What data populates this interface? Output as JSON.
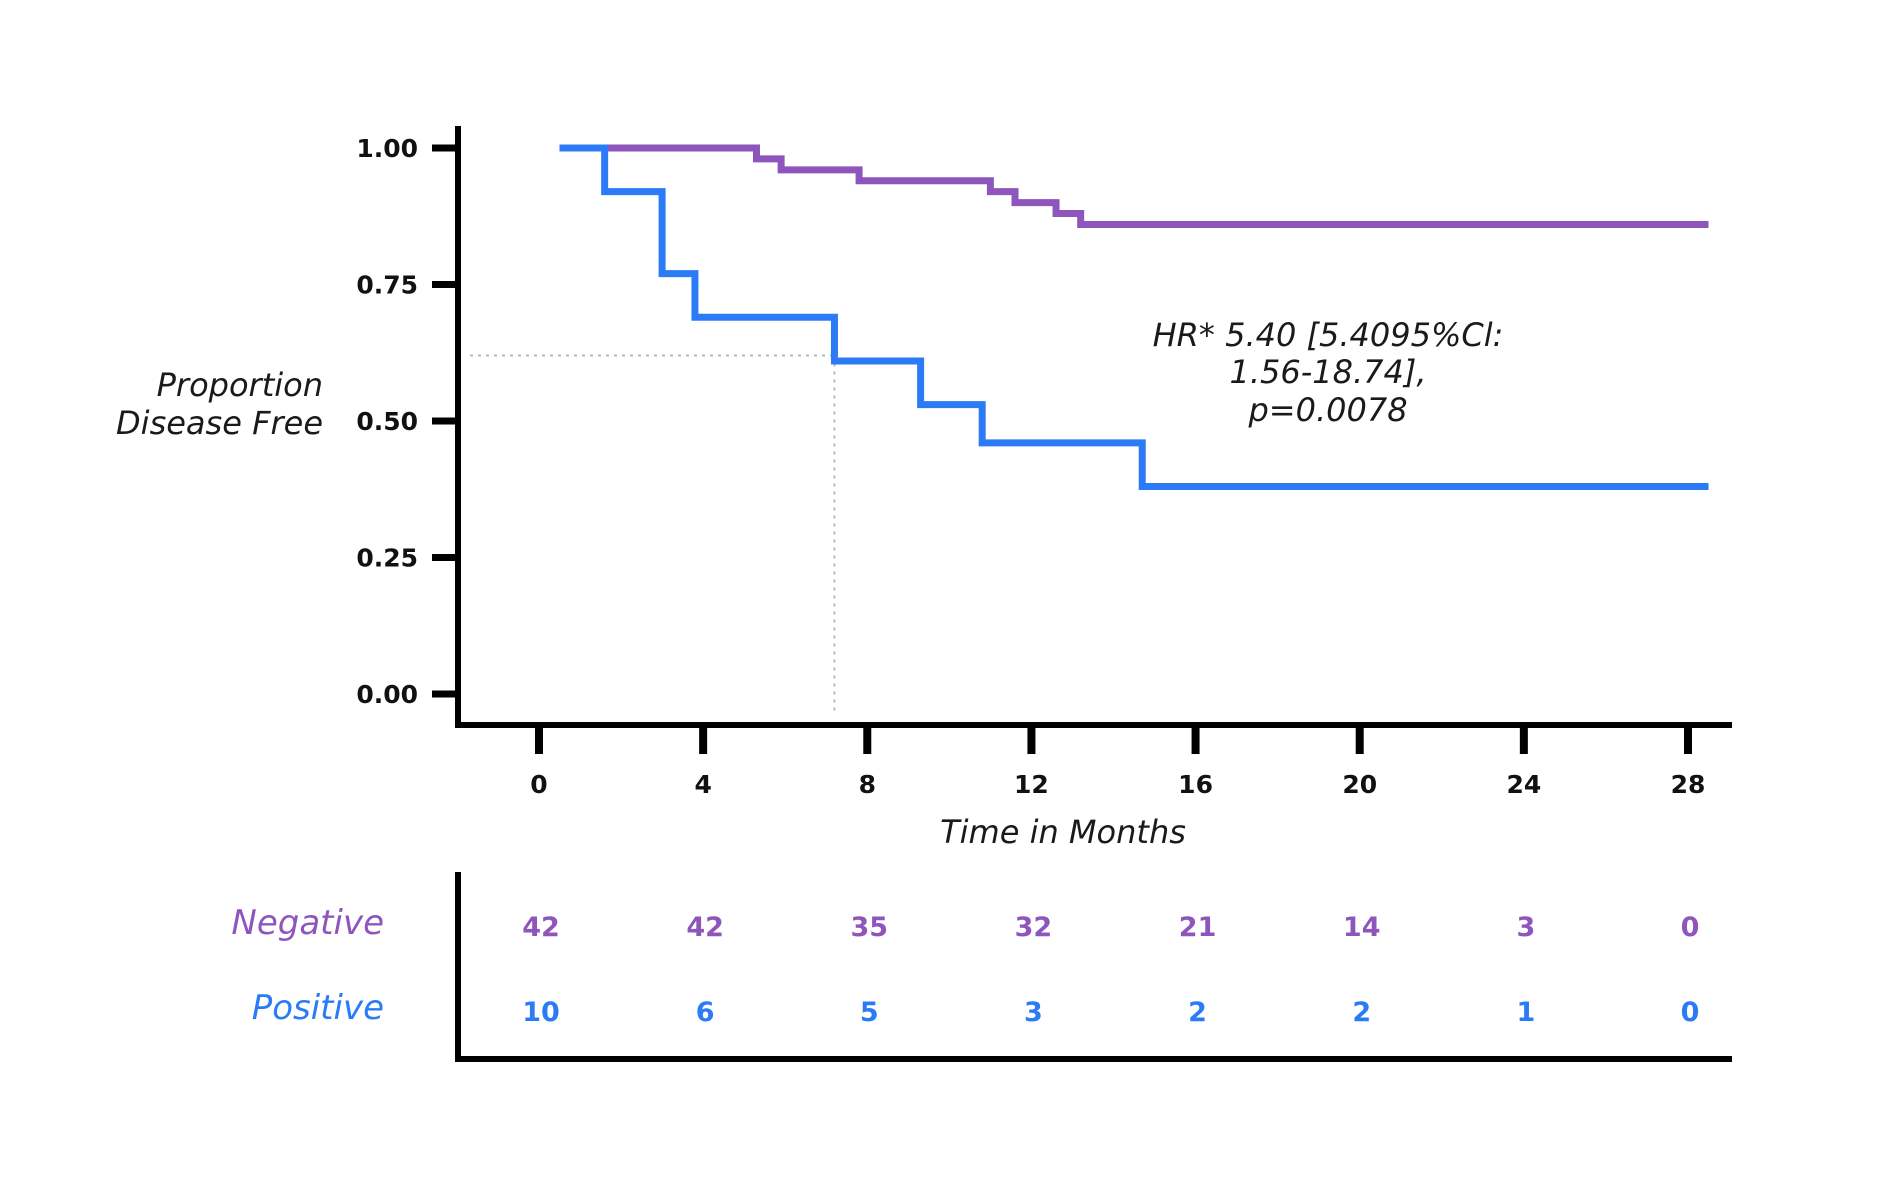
{
  "chart_data": {
    "type": "line",
    "subtype": "kaplan-meier",
    "title": "",
    "xlabel": "Time in Months",
    "ylabel": [
      "Proportion",
      "Disease Free"
    ],
    "xlim": [
      -2,
      29
    ],
    "ylim": [
      -0.06,
      1.06
    ],
    "x_ticks": [
      0,
      4,
      8,
      12,
      16,
      20,
      24,
      28
    ],
    "x_tick_labels": [
      "0",
      "4",
      "8",
      "12",
      "16",
      "20",
      "24",
      "28"
    ],
    "y_ticks": [
      0,
      0.25,
      0.5,
      0.75,
      1.0
    ],
    "y_tick_labels": [
      "0.00",
      "0.25",
      "0.50",
      "0.75",
      "1.00"
    ],
    "grid": false,
    "legend": "none",
    "series": [
      {
        "name": "Negative",
        "color": "#8e56bd",
        "steps": [
          {
            "x": 0.5,
            "y": 1.0
          },
          {
            "x": 5.3,
            "y": 0.98
          },
          {
            "x": 5.9,
            "y": 0.96
          },
          {
            "x": 7.8,
            "y": 0.94
          },
          {
            "x": 11.0,
            "y": 0.92
          },
          {
            "x": 11.6,
            "y": 0.9
          },
          {
            "x": 12.6,
            "y": 0.88
          },
          {
            "x": 13.2,
            "y": 0.86
          }
        ],
        "x_end": 28.5
      },
      {
        "name": "Positive",
        "color": "#2b7bf6",
        "steps": [
          {
            "x": 0.5,
            "y": 1.0
          },
          {
            "x": 1.6,
            "y": 0.92
          },
          {
            "x": 3.0,
            "y": 0.77
          },
          {
            "x": 3.8,
            "y": 0.69
          },
          {
            "x": 7.2,
            "y": 0.61
          },
          {
            "x": 9.3,
            "y": 0.53
          },
          {
            "x": 10.8,
            "y": 0.46
          },
          {
            "x": 14.7,
            "y": 0.38
          }
        ],
        "x_end": 28.5
      }
    ],
    "median_reference": {
      "x": 7.2,
      "y": 0.62
    },
    "annotation": [
      "HR* 5.40 [5.4095%Cl:",
      "1.56-18.74],",
      "p=0.0078"
    ],
    "risk_table": {
      "times": [
        0,
        4,
        8,
        12,
        16,
        20,
        24,
        28
      ],
      "rows": [
        {
          "name": "Negative",
          "color": "#8e56bd",
          "counts": [
            "42",
            "42",
            "35",
            "32",
            "21",
            "14",
            "3",
            "0"
          ]
        },
        {
          "name": "Positive",
          "color": "#2b7bf6",
          "counts": [
            "10",
            "6",
            "5",
            "3",
            "2",
            "2",
            "1",
            "0"
          ]
        }
      ]
    }
  }
}
